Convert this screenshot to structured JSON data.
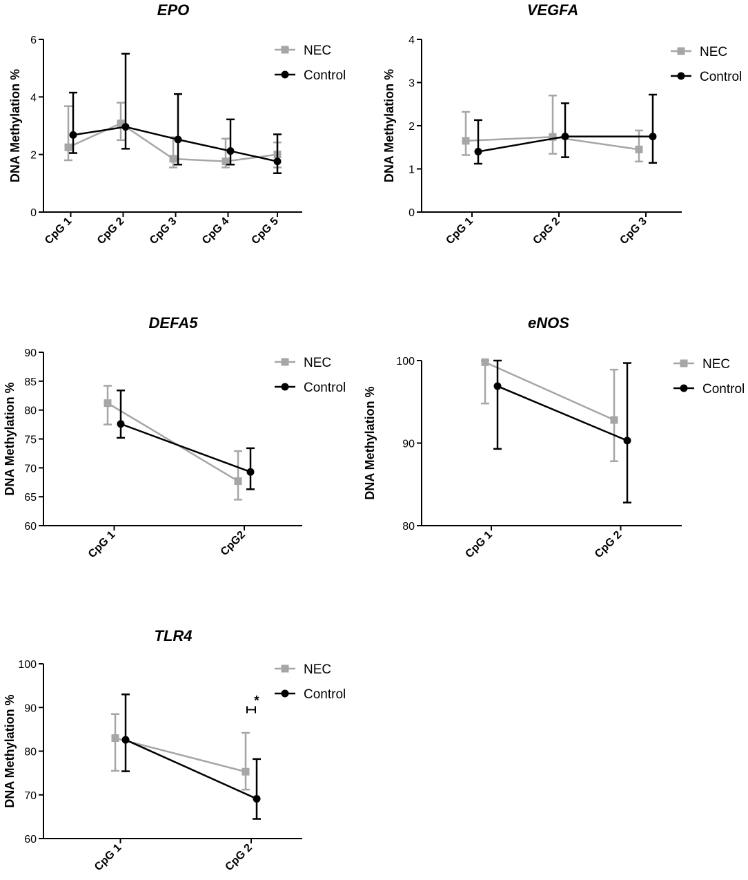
{
  "figure": {
    "ylabel": "DNA Methylation %",
    "series_names": [
      "NEC",
      "Control"
    ],
    "colors": {
      "nec": "#a6a6a6",
      "control": "#000000",
      "axis": "#000000"
    }
  },
  "chart_data": [
    {
      "type": "line",
      "title": "EPO",
      "ylabel": "DNA Methylation %",
      "categories": [
        "CpG 1",
        "CpG 2",
        "CpG 3",
        "CpG 4",
        "CpG 5"
      ],
      "ylim": [
        0,
        6
      ],
      "yticks": [
        0,
        2,
        4,
        6
      ],
      "series": [
        {
          "name": "NEC",
          "values": [
            2.25,
            3.08,
            1.85,
            1.76,
            2.0
          ],
          "err_low": [
            1.8,
            2.5,
            1.55,
            1.55,
            1.55
          ],
          "err_high": [
            3.68,
            3.8,
            2.6,
            2.55,
            2.42
          ]
        },
        {
          "name": "Control",
          "values": [
            2.68,
            2.96,
            2.52,
            2.12,
            1.76
          ],
          "err_low": [
            2.05,
            2.2,
            1.65,
            1.65,
            1.35
          ],
          "err_high": [
            4.15,
            5.5,
            4.1,
            3.22,
            2.7
          ]
        }
      ],
      "annotations": []
    },
    {
      "type": "line",
      "title": "VEGFA",
      "ylabel": "DNA Methylation %",
      "categories": [
        "CpG 1",
        "CpG 2",
        "CpG 3"
      ],
      "ylim": [
        0,
        4
      ],
      "yticks": [
        0,
        1,
        2,
        3,
        4
      ],
      "series": [
        {
          "name": "NEC",
          "values": [
            1.65,
            1.74,
            1.45
          ],
          "err_low": [
            1.32,
            1.35,
            1.17
          ],
          "err_high": [
            2.32,
            2.7,
            1.89
          ]
        },
        {
          "name": "Control",
          "values": [
            1.4,
            1.75,
            1.75
          ],
          "err_low": [
            1.12,
            1.27,
            1.14
          ],
          "err_high": [
            2.13,
            2.52,
            2.72
          ]
        }
      ],
      "annotations": []
    },
    {
      "type": "line",
      "title": "DEFA5",
      "ylabel": "DNA Methylation %",
      "categories": [
        "CpG 1",
        "CpG2"
      ],
      "ylim": [
        60,
        90
      ],
      "yticks": [
        60,
        65,
        70,
        75,
        80,
        85,
        90
      ],
      "series": [
        {
          "name": "NEC",
          "values": [
            81.2,
            67.7
          ],
          "err_low": [
            77.5,
            64.5
          ],
          "err_high": [
            84.2,
            72.9
          ]
        },
        {
          "name": "Control",
          "values": [
            77.6,
            69.3
          ],
          "err_low": [
            75.2,
            66.3
          ],
          "err_high": [
            83.4,
            73.4
          ]
        }
      ],
      "annotations": []
    },
    {
      "type": "line",
      "title": "eNOS",
      "ylabel": "DNA Methylation %",
      "categories": [
        "CpG 1",
        "CpG 2"
      ],
      "ylim": [
        80,
        100
      ],
      "yticks": [
        80,
        90,
        100
      ],
      "series": [
        {
          "name": "NEC",
          "values": [
            99.8,
            92.8
          ],
          "err_low": [
            94.8,
            87.8
          ],
          "err_high": [
            100,
            98.9
          ]
        },
        {
          "name": "Control",
          "values": [
            96.9,
            90.3
          ],
          "err_low": [
            89.3,
            82.8
          ],
          "err_high": [
            100,
            99.7
          ]
        }
      ],
      "annotations": []
    },
    {
      "type": "line",
      "title": "TLR4",
      "ylabel": "DNA Methylation %",
      "categories": [
        "CpG 1",
        "CpG 2"
      ],
      "ylim": [
        60,
        100
      ],
      "yticks": [
        60,
        70,
        80,
        90,
        100
      ],
      "series": [
        {
          "name": "NEC",
          "values": [
            83.0,
            75.3
          ],
          "err_low": [
            75.5,
            71.2
          ],
          "err_high": [
            88.5,
            84.2
          ]
        },
        {
          "name": "Control",
          "values": [
            82.6,
            69.1
          ],
          "err_low": [
            75.4,
            64.5
          ],
          "err_high": [
            93.0,
            78.2
          ]
        }
      ],
      "annotations": [
        {
          "text": "*",
          "category": "CpG 2",
          "bracket_low": 88.7,
          "bracket_high": 90.3
        }
      ]
    }
  ]
}
